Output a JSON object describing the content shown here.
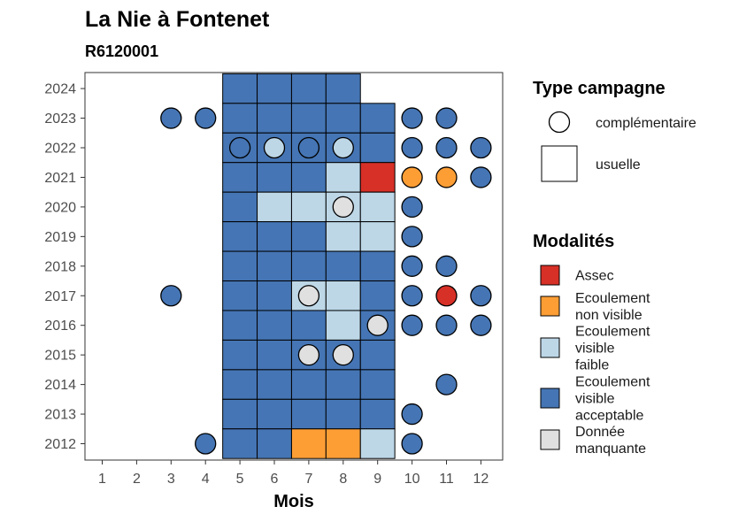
{
  "chart_data": {
    "type": "heatmap",
    "title": "La Nie à Fontenet",
    "subtitle": "R6120001",
    "xlabel": "Mois",
    "ylabel": "",
    "x_ticks": [
      1,
      2,
      3,
      4,
      5,
      6,
      7,
      8,
      9,
      10,
      11,
      12
    ],
    "y_ticks": [
      2012,
      2013,
      2014,
      2015,
      2016,
      2017,
      2018,
      2019,
      2020,
      2021,
      2022,
      2023,
      2024
    ],
    "colors": {
      "Assec": "#d73027",
      "Ecoulement non visible": "#fd9e35",
      "Ecoulement visible faible": "#bdd7e7",
      "Ecoulement visible acceptable": "#4575b4",
      "Donnée manquante": "#e0e0e0"
    },
    "legend_type": {
      "title": "Type campagne",
      "entries": [
        {
          "label": "complémentaire",
          "shape": "circle"
        },
        {
          "label": "usuelle",
          "shape": "square"
        }
      ]
    },
    "legend_modalites": {
      "title": "Modalités",
      "entries": [
        {
          "key": "Assec",
          "lines": [
            "Assec"
          ]
        },
        {
          "key": "Ecoulement non visible",
          "lines": [
            "Ecoulement",
            "non visible"
          ]
        },
        {
          "key": "Ecoulement visible faible",
          "lines": [
            "Ecoulement",
            "visible",
            "faible"
          ]
        },
        {
          "key": "Ecoulement visible acceptable",
          "lines": [
            "Ecoulement",
            "visible",
            "acceptable"
          ]
        },
        {
          "key": "Donnée manquante",
          "lines": [
            "Donnée",
            "manquante"
          ]
        }
      ]
    },
    "usuelle": [
      {
        "year": 2024,
        "month": 5,
        "value": "Ecoulement visible acceptable"
      },
      {
        "year": 2024,
        "month": 6,
        "value": "Ecoulement visible acceptable"
      },
      {
        "year": 2024,
        "month": 7,
        "value": "Ecoulement visible acceptable"
      },
      {
        "year": 2024,
        "month": 8,
        "value": "Ecoulement visible acceptable"
      },
      {
        "year": 2023,
        "month": 5,
        "value": "Ecoulement visible acceptable"
      },
      {
        "year": 2023,
        "month": 6,
        "value": "Ecoulement visible acceptable"
      },
      {
        "year": 2023,
        "month": 7,
        "value": "Ecoulement visible acceptable"
      },
      {
        "year": 2023,
        "month": 8,
        "value": "Ecoulement visible acceptable"
      },
      {
        "year": 2023,
        "month": 9,
        "value": "Ecoulement visible acceptable"
      },
      {
        "year": 2022,
        "month": 5,
        "value": "Ecoulement visible acceptable"
      },
      {
        "year": 2022,
        "month": 6,
        "value": "Ecoulement visible acceptable"
      },
      {
        "year": 2022,
        "month": 7,
        "value": "Ecoulement visible acceptable"
      },
      {
        "year": 2022,
        "month": 8,
        "value": "Ecoulement visible acceptable"
      },
      {
        "year": 2022,
        "month": 9,
        "value": "Ecoulement visible acceptable"
      },
      {
        "year": 2021,
        "month": 5,
        "value": "Ecoulement visible acceptable"
      },
      {
        "year": 2021,
        "month": 6,
        "value": "Ecoulement visible acceptable"
      },
      {
        "year": 2021,
        "month": 7,
        "value": "Ecoulement visible acceptable"
      },
      {
        "year": 2021,
        "month": 8,
        "value": "Ecoulement visible faible"
      },
      {
        "year": 2021,
        "month": 9,
        "value": "Assec"
      },
      {
        "year": 2020,
        "month": 5,
        "value": "Ecoulement visible acceptable"
      },
      {
        "year": 2020,
        "month": 6,
        "value": "Ecoulement visible faible"
      },
      {
        "year": 2020,
        "month": 7,
        "value": "Ecoulement visible faible"
      },
      {
        "year": 2020,
        "month": 8,
        "value": "Ecoulement visible faible"
      },
      {
        "year": 2020,
        "month": 9,
        "value": "Ecoulement visible faible"
      },
      {
        "year": 2019,
        "month": 5,
        "value": "Ecoulement visible acceptable"
      },
      {
        "year": 2019,
        "month": 6,
        "value": "Ecoulement visible acceptable"
      },
      {
        "year": 2019,
        "month": 7,
        "value": "Ecoulement visible acceptable"
      },
      {
        "year": 2019,
        "month": 8,
        "value": "Ecoulement visible faible"
      },
      {
        "year": 2019,
        "month": 9,
        "value": "Ecoulement visible faible"
      },
      {
        "year": 2018,
        "month": 5,
        "value": "Ecoulement visible acceptable"
      },
      {
        "year": 2018,
        "month": 6,
        "value": "Ecoulement visible acceptable"
      },
      {
        "year": 2018,
        "month": 7,
        "value": "Ecoulement visible acceptable"
      },
      {
        "year": 2018,
        "month": 8,
        "value": "Ecoulement visible acceptable"
      },
      {
        "year": 2018,
        "month": 9,
        "value": "Ecoulement visible acceptable"
      },
      {
        "year": 2017,
        "month": 5,
        "value": "Ecoulement visible acceptable"
      },
      {
        "year": 2017,
        "month": 6,
        "value": "Ecoulement visible acceptable"
      },
      {
        "year": 2017,
        "month": 7,
        "value": "Ecoulement visible faible"
      },
      {
        "year": 2017,
        "month": 8,
        "value": "Ecoulement visible faible"
      },
      {
        "year": 2017,
        "month": 9,
        "value": "Ecoulement visible acceptable"
      },
      {
        "year": 2016,
        "month": 5,
        "value": "Ecoulement visible acceptable"
      },
      {
        "year": 2016,
        "month": 6,
        "value": "Ecoulement visible acceptable"
      },
      {
        "year": 2016,
        "month": 7,
        "value": "Ecoulement visible acceptable"
      },
      {
        "year": 2016,
        "month": 8,
        "value": "Ecoulement visible faible"
      },
      {
        "year": 2016,
        "month": 9,
        "value": "Ecoulement visible acceptable"
      },
      {
        "year": 2015,
        "month": 5,
        "value": "Ecoulement visible acceptable"
      },
      {
        "year": 2015,
        "month": 6,
        "value": "Ecoulement visible acceptable"
      },
      {
        "year": 2015,
        "month": 7,
        "value": "Ecoulement visible acceptable"
      },
      {
        "year": 2015,
        "month": 8,
        "value": "Ecoulement visible acceptable"
      },
      {
        "year": 2015,
        "month": 9,
        "value": "Ecoulement visible acceptable"
      },
      {
        "year": 2014,
        "month": 5,
        "value": "Ecoulement visible acceptable"
      },
      {
        "year": 2014,
        "month": 6,
        "value": "Ecoulement visible acceptable"
      },
      {
        "year": 2014,
        "month": 7,
        "value": "Ecoulement visible acceptable"
      },
      {
        "year": 2014,
        "month": 8,
        "value": "Ecoulement visible acceptable"
      },
      {
        "year": 2014,
        "month": 9,
        "value": "Ecoulement visible acceptable"
      },
      {
        "year": 2013,
        "month": 5,
        "value": "Ecoulement visible acceptable"
      },
      {
        "year": 2013,
        "month": 6,
        "value": "Ecoulement visible acceptable"
      },
      {
        "year": 2013,
        "month": 7,
        "value": "Ecoulement visible acceptable"
      },
      {
        "year": 2013,
        "month": 8,
        "value": "Ecoulement visible acceptable"
      },
      {
        "year": 2013,
        "month": 9,
        "value": "Ecoulement visible acceptable"
      },
      {
        "year": 2012,
        "month": 5,
        "value": "Ecoulement visible acceptable"
      },
      {
        "year": 2012,
        "month": 6,
        "value": "Ecoulement visible acceptable"
      },
      {
        "year": 2012,
        "month": 7,
        "value": "Ecoulement non visible"
      },
      {
        "year": 2012,
        "month": 8,
        "value": "Ecoulement non visible"
      },
      {
        "year": 2012,
        "month": 9,
        "value": "Ecoulement visible faible"
      }
    ],
    "complementaire": [
      {
        "year": 2023,
        "month": 3,
        "value": "Ecoulement visible acceptable"
      },
      {
        "year": 2023,
        "month": 4,
        "value": "Ecoulement visible acceptable"
      },
      {
        "year": 2023,
        "month": 10,
        "value": "Ecoulement visible acceptable"
      },
      {
        "year": 2023,
        "month": 11,
        "value": "Ecoulement visible acceptable"
      },
      {
        "year": 2022,
        "month": 5,
        "value": "Ecoulement visible acceptable"
      },
      {
        "year": 2022,
        "month": 6,
        "value": "Ecoulement visible faible"
      },
      {
        "year": 2022,
        "month": 7,
        "value": "Ecoulement visible acceptable"
      },
      {
        "year": 2022,
        "month": 8,
        "value": "Ecoulement visible faible"
      },
      {
        "year": 2022,
        "month": 10,
        "value": "Ecoulement visible acceptable"
      },
      {
        "year": 2022,
        "month": 11,
        "value": "Ecoulement visible acceptable"
      },
      {
        "year": 2022,
        "month": 12,
        "value": "Ecoulement visible acceptable"
      },
      {
        "year": 2021,
        "month": 10,
        "value": "Ecoulement non visible"
      },
      {
        "year": 2021,
        "month": 11,
        "value": "Ecoulement non visible"
      },
      {
        "year": 2021,
        "month": 12,
        "value": "Ecoulement visible acceptable"
      },
      {
        "year": 2020,
        "month": 8,
        "value": "Donnée manquante"
      },
      {
        "year": 2020,
        "month": 10,
        "value": "Ecoulement visible acceptable"
      },
      {
        "year": 2019,
        "month": 10,
        "value": "Ecoulement visible acceptable"
      },
      {
        "year": 2018,
        "month": 10,
        "value": "Ecoulement visible acceptable"
      },
      {
        "year": 2018,
        "month": 11,
        "value": "Ecoulement visible acceptable"
      },
      {
        "year": 2017,
        "month": 3,
        "value": "Ecoulement visible acceptable"
      },
      {
        "year": 2017,
        "month": 7,
        "value": "Donnée manquante"
      },
      {
        "year": 2017,
        "month": 10,
        "value": "Ecoulement visible acceptable"
      },
      {
        "year": 2017,
        "month": 11,
        "value": "Assec"
      },
      {
        "year": 2017,
        "month": 12,
        "value": "Ecoulement visible acceptable"
      },
      {
        "year": 2016,
        "month": 9,
        "value": "Donnée manquante"
      },
      {
        "year": 2016,
        "month": 10,
        "value": "Ecoulement visible acceptable"
      },
      {
        "year": 2016,
        "month": 11,
        "value": "Ecoulement visible acceptable"
      },
      {
        "year": 2016,
        "month": 12,
        "value": "Ecoulement visible acceptable"
      },
      {
        "year": 2015,
        "month": 7,
        "value": "Donnée manquante"
      },
      {
        "year": 2015,
        "month": 8,
        "value": "Donnée manquante"
      },
      {
        "year": 2014,
        "month": 11,
        "value": "Ecoulement visible acceptable"
      },
      {
        "year": 2013,
        "month": 10,
        "value": "Ecoulement visible acceptable"
      },
      {
        "year": 2012,
        "month": 4,
        "value": "Ecoulement visible acceptable"
      },
      {
        "year": 2012,
        "month": 10,
        "value": "Ecoulement visible acceptable"
      }
    ]
  }
}
